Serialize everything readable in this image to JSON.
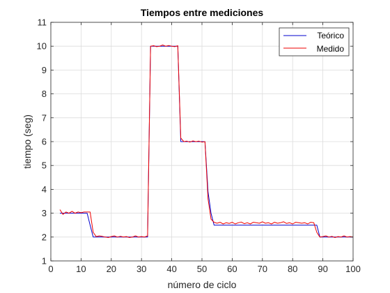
{
  "chart_data": {
    "type": "line",
    "title": "Tiempos entre mediciones",
    "xlabel": "número de ciclo",
    "ylabel": "tiempo (seg)",
    "xlim": [
      0,
      100
    ],
    "ylim": [
      1,
      11
    ],
    "xticks": [
      0,
      10,
      20,
      30,
      40,
      50,
      60,
      70,
      80,
      90,
      100
    ],
    "yticks": [
      1,
      2,
      3,
      4,
      5,
      6,
      7,
      8,
      9,
      10,
      11
    ],
    "grid": true,
    "legend_position": "top-right",
    "series": [
      {
        "name": "Teórico",
        "color": "#0000cc",
        "x": [
          3,
          12,
          13,
          14,
          32,
          33,
          42,
          43,
          51,
          52,
          53,
          54,
          87,
          88,
          89,
          100
        ],
        "y": [
          3.0,
          3.0,
          2.5,
          2.0,
          2.0,
          10.0,
          10.0,
          6.0,
          6.0,
          3.9,
          3.0,
          2.5,
          2.5,
          2.5,
          2.0,
          2.0
        ]
      },
      {
        "name": "Medido",
        "color": "#ee0000",
        "x": [
          3,
          4,
          5,
          6,
          7,
          8,
          9,
          10,
          11,
          12,
          13,
          14,
          15,
          16,
          17,
          18,
          19,
          20,
          21,
          22,
          23,
          24,
          25,
          26,
          27,
          28,
          29,
          30,
          31,
          32,
          33,
          34,
          35,
          36,
          37,
          38,
          39,
          40,
          41,
          42,
          43,
          44,
          45,
          46,
          47,
          48,
          49,
          50,
          51,
          52,
          53,
          54,
          55,
          56,
          57,
          58,
          59,
          60,
          61,
          62,
          63,
          64,
          65,
          66,
          67,
          68,
          69,
          70,
          71,
          72,
          73,
          74,
          75,
          76,
          77,
          78,
          79,
          80,
          81,
          82,
          83,
          84,
          85,
          86,
          87,
          88,
          89,
          90,
          91,
          92,
          93,
          94,
          95,
          96,
          97,
          98,
          99,
          100
        ],
        "y": [
          3.15,
          2.95,
          3.05,
          3.0,
          3.08,
          3.0,
          3.05,
          3.02,
          3.05,
          3.05,
          3.05,
          2.2,
          2.02,
          2.05,
          2.03,
          2.0,
          1.98,
          2.02,
          2.05,
          2.0,
          2.03,
          2.0,
          2.02,
          1.98,
          2.0,
          2.05,
          2.0,
          2.02,
          2.0,
          2.05,
          10.0,
          10.02,
          9.98,
          10.0,
          10.05,
          10.0,
          10.03,
          10.0,
          9.98,
          10.02,
          6.15,
          6.0,
          6.02,
          5.98,
          6.03,
          6.0,
          6.02,
          5.98,
          6.0,
          3.6,
          2.75,
          2.62,
          2.58,
          2.62,
          2.55,
          2.6,
          2.57,
          2.62,
          2.55,
          2.6,
          2.63,
          2.56,
          2.6,
          2.55,
          2.62,
          2.6,
          2.58,
          2.64,
          2.58,
          2.6,
          2.55,
          2.62,
          2.58,
          2.6,
          2.64,
          2.57,
          2.6,
          2.55,
          2.62,
          2.6,
          2.58,
          2.6,
          2.55,
          2.62,
          2.6,
          2.2,
          2.0,
          2.02,
          2.05,
          2.0,
          2.03,
          1.98,
          2.02,
          2.0,
          2.05,
          2.0,
          2.02,
          2.0
        ]
      }
    ]
  }
}
